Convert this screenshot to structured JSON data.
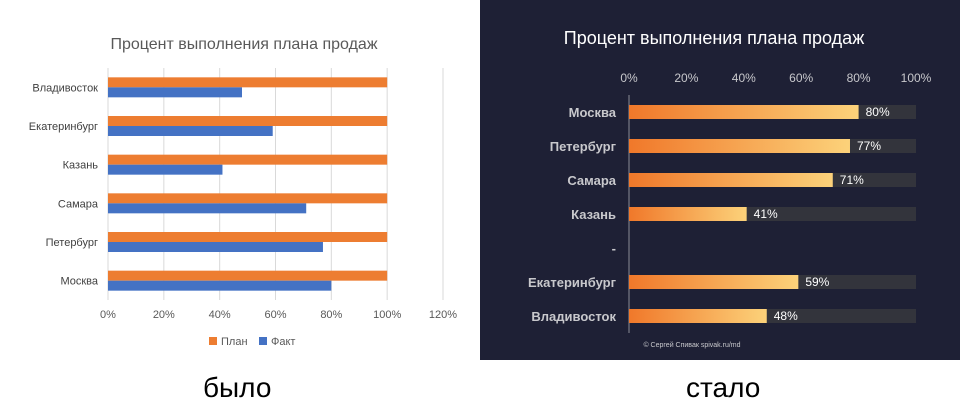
{
  "chart_data": [
    {
      "type": "bar",
      "orientation": "horizontal",
      "title": "Процент выполнения плана продаж",
      "categories": [
        "Владивосток",
        "Екатеринбург",
        "Казань",
        "Самара",
        "Петербург",
        "Москва"
      ],
      "series": [
        {
          "name": "План",
          "values": [
            1.0,
            1.0,
            1.0,
            1.0,
            1.0,
            1.0
          ],
          "color": "#ed7d31"
        },
        {
          "name": "Факт",
          "values": [
            0.48,
            0.59,
            0.41,
            0.71,
            0.77,
            0.8
          ],
          "color": "#4472c4"
        }
      ],
      "xlim": [
        0,
        1.2
      ],
      "ticks": [
        "0%",
        "20%",
        "40%",
        "60%",
        "80%",
        "100%",
        "120%"
      ],
      "grid": true,
      "legend": "bottom",
      "background": "#ffffff"
    },
    {
      "type": "bar",
      "orientation": "horizontal",
      "title": "Процент выполнения плана продаж",
      "categories": [
        "Москва",
        "Петербург",
        "Самара",
        "Казань",
        "-",
        "Екатеринбург",
        "Владивосток"
      ],
      "values": [
        0.8,
        0.77,
        0.71,
        0.41,
        null,
        0.59,
        0.48
      ],
      "data_labels": [
        "80%",
        "77%",
        "71%",
        "41%",
        "",
        "59%",
        "48%"
      ],
      "xlim": [
        0,
        1.0
      ],
      "ticks": [
        "0%",
        "20%",
        "40%",
        "60%",
        "80%",
        "100%"
      ],
      "axis_position": "top",
      "grid": false,
      "colors": {
        "background": "#1e2035",
        "track": "#33343c",
        "bar_start": "#f0782a",
        "bar_end": "#fcd27a",
        "text": "#c8c8cc"
      },
      "credit": "© Сергей Спивак   spivak.ru/md"
    }
  ],
  "captions": {
    "left": "было",
    "right": "стало"
  }
}
